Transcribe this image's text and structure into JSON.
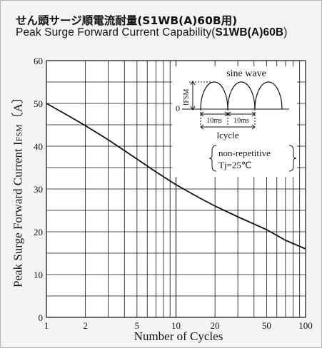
{
  "header": {
    "title_jp": "せん頭サージ順電流耐量(S1WB(A)60B用)",
    "title_en_prefix": "Peak Surge Forward Current Capability(",
    "title_en_model": "S1WB(A)60B",
    "title_en_suffix": ")"
  },
  "chart_data": {
    "type": "line",
    "title": "Peak Surge Forward Current Capability(S1WB(A)60B)",
    "xlabel": "Number of Cycles",
    "ylabel": "Peak Surge Forward Current I",
    "ylabel_sub": "FSM",
    "ylabel_unit": "〔A〕",
    "xscale": "log",
    "xlim": [
      1,
      100
    ],
    "ylim": [
      0,
      60
    ],
    "grid": true,
    "x_ticks": [
      1,
      2,
      5,
      10,
      20,
      50,
      100
    ],
    "y_ticks": [
      0,
      10,
      20,
      30,
      40,
      50,
      60
    ],
    "series": [
      {
        "x": [
          1,
          1.5,
          2,
          3,
          5,
          7,
          10,
          15,
          20,
          30,
          50,
          70,
          100
        ],
        "y": [
          50,
          47,
          44.8,
          41.5,
          37,
          34,
          31,
          28,
          26,
          23.5,
          20.5,
          18,
          16
        ]
      }
    ],
    "inset": {
      "title": "sine wave",
      "amplitude_label": "IFSM",
      "zero_label": "0",
      "period_labels": [
        "10ms",
        "10ms"
      ],
      "cycle_label": "lcycle",
      "conditions": [
        "non-repetitive",
        "Tj=25℃"
      ]
    }
  }
}
